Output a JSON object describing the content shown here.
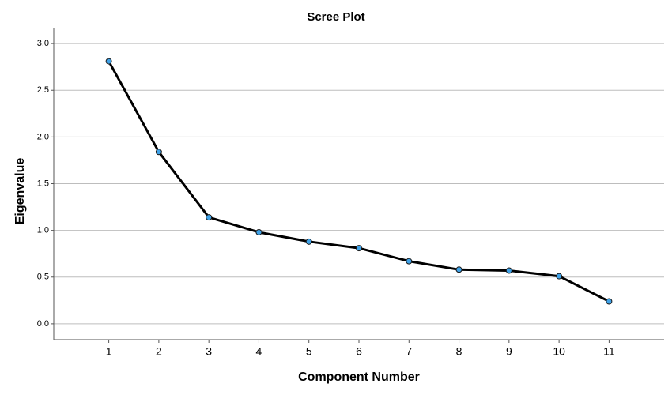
{
  "chart_data": {
    "type": "line",
    "title": "Scree Plot",
    "x_label": "Component Number",
    "y_label": "Eigenvalue",
    "x": [
      1,
      2,
      3,
      4,
      5,
      6,
      7,
      8,
      9,
      10,
      11
    ],
    "series": [
      {
        "name": "Eigenvalue",
        "color": "#000000",
        "marker_color": "#3fa2e8",
        "values": [
          2.81,
          1.84,
          1.14,
          0.98,
          0.88,
          0.81,
          0.67,
          0.58,
          0.57,
          0.51,
          0.24
        ]
      }
    ],
    "xlim": [
      -0.1,
      12.1
    ],
    "xticks": [
      1,
      2,
      3,
      4,
      5,
      6,
      7,
      8,
      9,
      10,
      11
    ],
    "ylim": [
      -0.17,
      3.17
    ],
    "yticks": [
      {
        "value": 0,
        "label": "0,0"
      },
      {
        "value": 0.5,
        "label": "0,5"
      },
      {
        "value": 1,
        "label": "1,0"
      },
      {
        "value": 1.5,
        "label": "1,5"
      },
      {
        "value": 2,
        "label": "2,0"
      },
      {
        "value": 2.5,
        "label": "2,5"
      },
      {
        "value": 3,
        "label": "3,0"
      }
    ],
    "grid": true
  }
}
